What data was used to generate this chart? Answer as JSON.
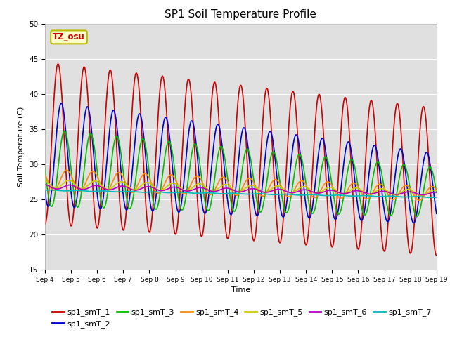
{
  "title": "SP1 Soil Temperature Profile",
  "xlabel": "Time",
  "ylabel": "Soil Temperature (C)",
  "ylim": [
    15,
    50
  ],
  "ytick_vals": [
    15,
    20,
    25,
    30,
    35,
    40,
    45,
    50
  ],
  "xtick_labels": [
    "Sep 4",
    "Sep 5",
    "Sep 6",
    "Sep 7",
    "Sep 8",
    "Sep 9",
    "Sep 10",
    "Sep 11",
    "Sep 12",
    "Sep 13",
    "Sep 14",
    "Sep 15",
    "Sep 16",
    "Sep 17",
    "Sep 18",
    "Sep 19"
  ],
  "annotation_text": "TZ_osu",
  "annotation_facecolor": "#ffffcc",
  "annotation_edgecolor": "#bbbb00",
  "annotation_textcolor": "#cc0000",
  "series": [
    {
      "name": "sp1_smT_1",
      "color": "#cc0000",
      "linewidth": 1.2
    },
    {
      "name": "sp1_smT_2",
      "color": "#0000cc",
      "linewidth": 1.2
    },
    {
      "name": "sp1_smT_3",
      "color": "#00bb00",
      "linewidth": 1.2
    },
    {
      "name": "sp1_smT_4",
      "color": "#ff8800",
      "linewidth": 1.2
    },
    {
      "name": "sp1_smT_5",
      "color": "#cccc00",
      "linewidth": 1.2
    },
    {
      "name": "sp1_smT_6",
      "color": "#bb00bb",
      "linewidth": 1.2
    },
    {
      "name": "sp1_smT_7",
      "color": "#00bbbb",
      "linewidth": 1.2
    }
  ],
  "fig_facecolor": "#ffffff",
  "axes_facecolor": "#e0e0e0",
  "grid_color": "#ffffff",
  "title_fontsize": 11,
  "legend_ncol": 6,
  "legend_fontsize": 8
}
